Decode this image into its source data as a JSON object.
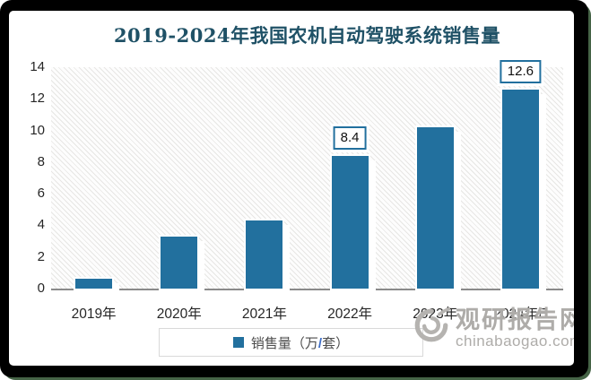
{
  "chart_data": {
    "type": "bar",
    "title": "2019-2024年我国农机自动驾驶系统销售量",
    "categories": [
      "2019年",
      "2020年",
      "2021年",
      "2022年",
      "2023年",
      "2024年E"
    ],
    "values": [
      0.6,
      3.3,
      4.3,
      8.4,
      10.2,
      12.6
    ],
    "labeled_points": [
      {
        "index": 3,
        "label": "8.4"
      },
      {
        "index": 5,
        "label": "12.6"
      }
    ],
    "xlabel": "",
    "ylabel": "",
    "ylim": [
      0,
      14
    ],
    "yticks": [
      0,
      2,
      4,
      6,
      8,
      10,
      12,
      14
    ],
    "grid": "none",
    "plot_background": "diagonal-hatch",
    "legend_position": "bottom",
    "colors": {
      "bar": "#22709e",
      "title": "#1f5166",
      "axis_text": "#262626",
      "legend_text": "#4d4d4d",
      "legend_slash": "#3b6cc7",
      "data_label_border": "#22709e",
      "baseline": "#8a8a8a",
      "frame_black": "#000000",
      "frame_green": "#456346",
      "watermark_gray": "#aeaca9"
    }
  },
  "legend": {
    "pre": "销售量（万",
    "slash": "/",
    "post": "套）"
  },
  "watermark": {
    "brand": "观研报告网",
    "domain": "chinabaogao.com"
  }
}
